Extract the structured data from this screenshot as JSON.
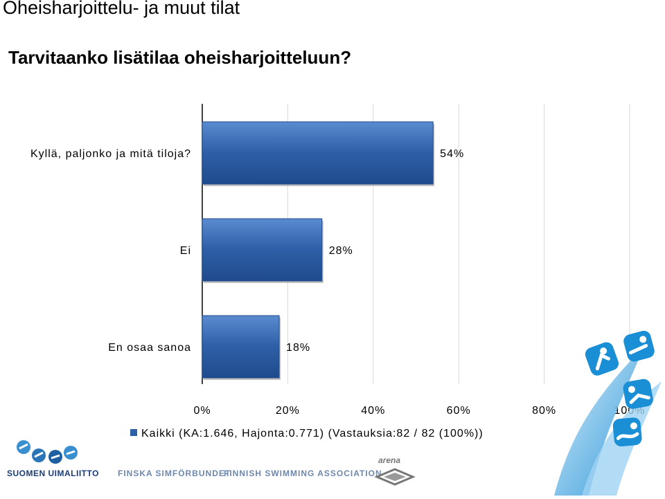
{
  "page": {
    "title": "Oheisharjoittelu- ja muut tilat",
    "subtitle": "Tarvitaanko lisätilaa oheisharjoitteluun?"
  },
  "footer": {
    "org_fi": "SUOMEN UIMALIITTO",
    "org_sv": "FINSKA SIMFÖRBUNDET",
    "org_en": "FINNISH SWIMMING ASSOCIATION",
    "sponsor": "arena"
  },
  "colors": {
    "bar_fill": "#2e5fa6",
    "bar_fill_light": "#4f80c7",
    "grid": "#d9d9d9",
    "text": "#000000",
    "accent": "#1a8fd6"
  },
  "chart_data": {
    "type": "bar",
    "orientation": "horizontal",
    "categories": [
      "Kyllä, paljonko ja mitä tiloja?",
      "Ei",
      "En osaa sanoa"
    ],
    "series": [
      {
        "name": "Kaikki (KA:1.646, Hajonta:0.771) (Vastauksia:82 / 82 (100%))",
        "values": [
          54,
          28,
          18
        ]
      }
    ],
    "value_labels": [
      "54%",
      "28%",
      "18%"
    ],
    "x_ticks": [
      "0%",
      "20%",
      "40%",
      "60%",
      "80%",
      "100%"
    ],
    "xlim": [
      0,
      100
    ],
    "grid": true,
    "legend_position": "bottom"
  }
}
